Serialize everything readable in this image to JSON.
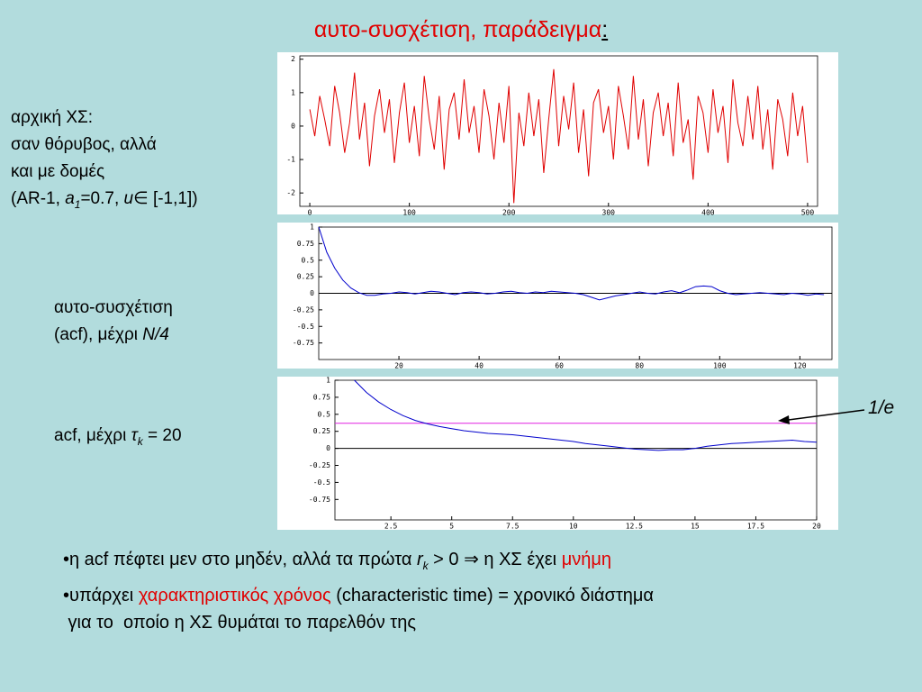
{
  "slide": {
    "title": "αυτο-συσχέτιση, παράδειγμα",
    "title_colon": ":",
    "note1": {
      "lines": [
        "αρχική ΧΣ:",
        "σαν θόρυβος, αλλά",
        "και με δομές"
      ],
      "last": [
        "(AR-1, ",
        "a",
        "1",
        "=0.7, ",
        "u",
        "∈",
        " [-1,1])"
      ]
    },
    "note2": {
      "line1": "αυτο-συσχέτιση",
      "line2": "(acf), μέχρι ",
      "line2_italic": "N/4"
    },
    "note3": [
      "acf, μέχρι ",
      "τ",
      "k",
      " = 20"
    ],
    "annotation": "1/e",
    "bullet1": [
      "•η acf πέφτει μεν στο μηδέν, αλλά τα πρώτα ",
      "r",
      "k",
      " > 0 ⇒ η ΧΣ έχει ",
      "μνήμη"
    ],
    "bullet2": [
      "•υπάρχει ",
      "χαρακτηριστικός χρόνος",
      " (characteristic time) = χρονικό διάστημα"
    ],
    "bullet2_cont": " για το  οποίο η ΧΣ θυμάται το παρελθόν της"
  },
  "chart_data": [
    {
      "type": "line",
      "x": [
        0,
        5,
        10,
        15,
        20,
        25,
        30,
        35,
        40,
        45,
        50,
        55,
        60,
        65,
        70,
        75,
        80,
        85,
        90,
        95,
        100,
        105,
        110,
        115,
        120,
        125,
        130,
        135,
        140,
        145,
        150,
        155,
        160,
        165,
        170,
        175,
        180,
        185,
        190,
        195,
        200,
        205,
        210,
        215,
        220,
        225,
        230,
        235,
        240,
        245,
        250,
        255,
        260,
        265,
        270,
        275,
        280,
        285,
        290,
        295,
        300,
        305,
        310,
        315,
        320,
        325,
        330,
        335,
        340,
        345,
        350,
        355,
        360,
        365,
        370,
        375,
        380,
        385,
        390,
        395,
        400,
        405,
        410,
        415,
        420,
        425,
        430,
        435,
        440,
        445,
        450,
        455,
        460,
        465,
        470,
        475,
        480,
        485,
        490,
        495,
        500
      ],
      "series": [
        {
          "color": "#e00000",
          "values": [
            0.5,
            -0.3,
            0.9,
            0.2,
            -0.6,
            1.2,
            0.4,
            -0.8,
            0.1,
            1.6,
            -0.4,
            0.7,
            -1.2,
            0.3,
            1.1,
            -0.2,
            0.8,
            -1.1,
            0.4,
            1.3,
            -0.5,
            0.6,
            -0.9,
            1.5,
            0.2,
            -0.7,
            0.9,
            -1.3,
            0.5,
            1.0,
            -0.4,
            1.4,
            -0.2,
            0.6,
            -0.8,
            1.1,
            0.3,
            -1.0,
            0.7,
            -0.5,
            1.2,
            -2.3,
            0.4,
            -0.6,
            1.0,
            -0.3,
            0.8,
            -1.4,
            0.2,
            1.7,
            -0.6,
            0.9,
            -0.1,
            1.3,
            -0.8,
            0.5,
            -1.5,
            0.7,
            1.1,
            -0.2,
            0.6,
            -1.0,
            1.2,
            0.3,
            -0.7,
            1.5,
            -0.4,
            0.8,
            -1.2,
            0.4,
            1.0,
            -0.3,
            0.7,
            -0.9,
            1.3,
            -0.5,
            0.2,
            -1.6,
            0.9,
            0.4,
            -0.8,
            1.1,
            -0.2,
            0.6,
            -1.1,
            1.4,
            0.1,
            -0.6,
            0.9,
            -0.4,
            1.2,
            -0.7,
            0.5,
            -1.3,
            0.8,
            0.2,
            -0.9,
            1.0,
            -0.3,
            0.6,
            -1.1
          ]
        }
      ],
      "xlim": [
        -10,
        510
      ],
      "ylim": [
        -2.4,
        2.1
      ],
      "xticks": [
        0,
        100,
        200,
        300,
        400,
        500
      ],
      "yticks": [
        -2,
        -1,
        0,
        1,
        2
      ]
    },
    {
      "type": "line",
      "x": [
        0,
        2,
        4,
        6,
        8,
        10,
        12,
        14,
        16,
        18,
        20,
        22,
        24,
        26,
        28,
        30,
        32,
        34,
        36,
        38,
        40,
        42,
        44,
        46,
        48,
        50,
        52,
        54,
        56,
        58,
        60,
        62,
        64,
        66,
        68,
        70,
        72,
        74,
        76,
        78,
        80,
        82,
        84,
        86,
        88,
        90,
        92,
        94,
        96,
        98,
        100,
        102,
        104,
        106,
        108,
        110,
        112,
        114,
        116,
        118,
        120,
        122,
        124,
        126
      ],
      "series": [
        {
          "color": "#0000cc",
          "values": [
            1,
            0.62,
            0.38,
            0.2,
            0.08,
            0.01,
            -0.03,
            -0.03,
            -0.01,
            0,
            0.02,
            0.01,
            -0.01,
            0.01,
            0.03,
            0.02,
            0,
            -0.02,
            0.01,
            0.02,
            0.01,
            -0.01,
            0,
            0.02,
            0.03,
            0.01,
            0,
            0.02,
            0.01,
            0.03,
            0.02,
            0.01,
            0,
            -0.02,
            -0.06,
            -0.1,
            -0.07,
            -0.04,
            -0.02,
            0,
            0.02,
            0,
            -0.01,
            0.02,
            0.04,
            0.01,
            0.05,
            0.1,
            0.11,
            0.1,
            0.04,
            0,
            -0.02,
            -0.01,
            0,
            0.01,
            0,
            -0.01,
            -0.02,
            0,
            -0.01,
            -0.03,
            -0.01,
            -0.02
          ]
        }
      ],
      "hlines": [
        {
          "value": 0,
          "color": "#000000"
        }
      ],
      "xlim": [
        0,
        128
      ],
      "ylim": [
        -1,
        1
      ],
      "xticks": [
        20,
        40,
        60,
        80,
        100,
        120
      ],
      "yticks": [
        -0.75,
        -0.5,
        -0.25,
        0,
        0.25,
        0.5,
        0.75,
        1
      ]
    },
    {
      "type": "line",
      "x": [
        1,
        1.5,
        2,
        2.5,
        3,
        3.5,
        4,
        4.5,
        5,
        5.5,
        6,
        6.5,
        7,
        7.5,
        8,
        8.5,
        9,
        9.5,
        10,
        10.5,
        11,
        11.5,
        12,
        12.5,
        13,
        13.5,
        14,
        14.5,
        15,
        15.5,
        16,
        16.5,
        17,
        17.5,
        18,
        18.5,
        19,
        19.5,
        20
      ],
      "series": [
        {
          "color": "#0000cc",
          "values": [
            1,
            0.82,
            0.68,
            0.57,
            0.48,
            0.41,
            0.36,
            0.32,
            0.29,
            0.26,
            0.24,
            0.22,
            0.21,
            0.2,
            0.18,
            0.16,
            0.14,
            0.12,
            0.1,
            0.07,
            0.05,
            0.03,
            0.01,
            -0.01,
            -0.02,
            -0.03,
            -0.02,
            -0.02,
            0,
            0.03,
            0.05,
            0.07,
            0.08,
            0.09,
            0.1,
            0.11,
            0.12,
            0.1,
            0.09
          ]
        }
      ],
      "hlines": [
        {
          "value": 0,
          "color": "#000000"
        },
        {
          "value": 0.368,
          "color": "#e020e0"
        }
      ],
      "xlim": [
        0.2,
        20
      ],
      "ylim": [
        -1.05,
        1
      ],
      "xticks": [
        2.5,
        5,
        7.5,
        10,
        12.5,
        15,
        17.5,
        20
      ],
      "yticks": [
        -0.75,
        -0.5,
        -0.25,
        0,
        0.25,
        0.5,
        0.75,
        1
      ]
    }
  ]
}
